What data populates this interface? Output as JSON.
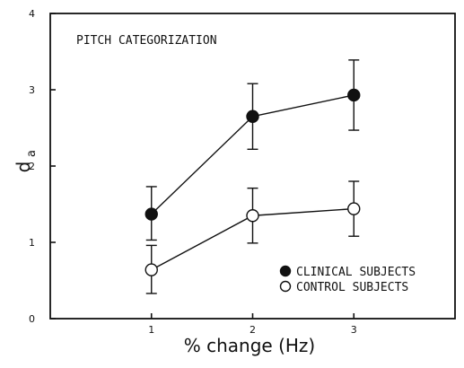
{
  "chart_data": {
    "type": "line",
    "title": "PITCH CATEGORIZATION",
    "xlabel": "% change (Hz)",
    "ylabel_main": "d",
    "ylabel_sub": "a",
    "xlim": [
      0,
      4
    ],
    "ylim": [
      0,
      4
    ],
    "xticks": [
      1,
      2,
      3
    ],
    "yticks": [
      0,
      1,
      2,
      3,
      4
    ],
    "legend_position": "bottom-right",
    "series": [
      {
        "name": "CLINICAL SUBJECTS",
        "marker": "filled-circle",
        "color": "#111111",
        "x": [
          1,
          2,
          3
        ],
        "y": [
          1.37,
          2.65,
          2.93
        ],
        "err_low": [
          1.03,
          2.22,
          2.47
        ],
        "err_high": [
          1.73,
          3.08,
          3.39
        ]
      },
      {
        "name": "CONTROL SUBJECTS",
        "marker": "open-circle",
        "color": "#111111",
        "x": [
          1,
          2,
          3
        ],
        "y": [
          0.64,
          1.35,
          1.44
        ],
        "err_low": [
          0.33,
          0.99,
          1.08
        ],
        "err_high": [
          0.96,
          1.71,
          1.8
        ]
      }
    ]
  }
}
